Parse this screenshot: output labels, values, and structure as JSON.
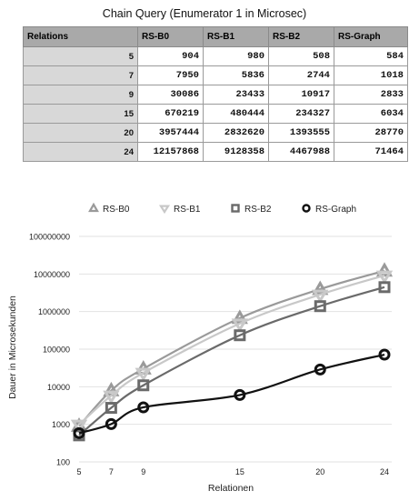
{
  "table": {
    "title": "Chain Query (Enumerator 1 in Microsec)",
    "headers": [
      "Relations",
      "RS-B0",
      "RS-B1",
      "RS-B2",
      "RS-Graph"
    ],
    "rows": [
      [
        "5",
        "904",
        "980",
        "508",
        "584"
      ],
      [
        "7",
        "7950",
        "5836",
        "2744",
        "1018"
      ],
      [
        "9",
        "30086",
        "23433",
        "10917",
        "2833"
      ],
      [
        "15",
        "670219",
        "480444",
        "234327",
        "6034"
      ],
      [
        "20",
        "3957444",
        "2832620",
        "1393555",
        "28770"
      ],
      [
        "24",
        "12157868",
        "9128358",
        "4467988",
        "71464"
      ]
    ]
  },
  "chart_data": {
    "type": "line",
    "title": "",
    "xlabel": "Relationen",
    "ylabel": "Dauer in Microsekunden",
    "x": [
      5,
      7,
      9,
      15,
      20,
      24
    ],
    "x_ticks": [
      "5",
      "7",
      "9",
      "15",
      "20",
      "24"
    ],
    "y_scale": "log",
    "ylim": [
      100,
      100000000
    ],
    "y_ticks": [
      "100",
      "1000",
      "10000",
      "100000",
      "1000000",
      "10000000",
      "100000000"
    ],
    "grid": true,
    "legend_position": "top",
    "series": [
      {
        "name": "RS-B0",
        "marker": "triangle",
        "color": "#9a9a9a",
        "values": [
          904,
          7950,
          30086,
          670219,
          3957444,
          12157868
        ]
      },
      {
        "name": "RS-B1",
        "marker": "triangle-down",
        "color": "#c8c8c8",
        "values": [
          980,
          5836,
          23433,
          480444,
          2832620,
          9128358
        ]
      },
      {
        "name": "RS-B2",
        "marker": "square",
        "color": "#6a6a6a",
        "values": [
          508,
          2744,
          10917,
          234327,
          1393555,
          4467988
        ]
      },
      {
        "name": "RS-Graph",
        "marker": "circle",
        "color": "#111111",
        "values": [
          584,
          1018,
          2833,
          6034,
          28770,
          71464
        ]
      }
    ]
  }
}
